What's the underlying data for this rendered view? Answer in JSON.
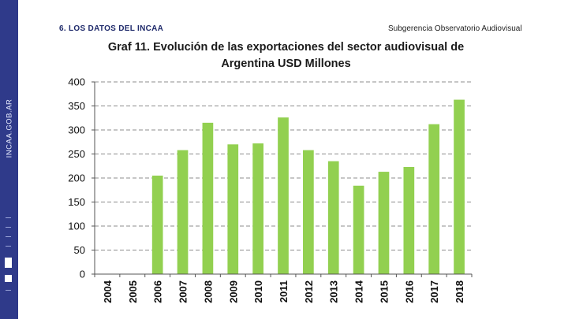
{
  "header": {
    "section_title": "6. LOS DATOS DEL INCAA",
    "subtitle": "Subgerencia Observatorio Audiovisual"
  },
  "sidebar": {
    "vertical_text": "INCAA.GOB.AR",
    "background_color": "#2f3a8a"
  },
  "chart_data": {
    "type": "bar",
    "title_line1": "Graf 11. Evolución de las exportaciones del sector audiovisual de",
    "title_line2": "Argentina USD Millones",
    "categories": [
      "2004",
      "2005",
      "2006",
      "2007",
      "2008",
      "2009",
      "2010",
      "2011",
      "2012",
      "2013",
      "2014",
      "2015",
      "2016",
      "2017",
      "2018"
    ],
    "values": [
      0,
      0,
      205,
      258,
      315,
      270,
      272,
      326,
      258,
      235,
      184,
      213,
      223,
      312,
      363
    ],
    "ylim": [
      0,
      400
    ],
    "yticks": [
      0,
      50,
      100,
      150,
      200,
      250,
      300,
      350,
      400
    ],
    "grid": "dashed horizontal",
    "bar_color": "#92d050",
    "xlabel": "",
    "ylabel": ""
  }
}
